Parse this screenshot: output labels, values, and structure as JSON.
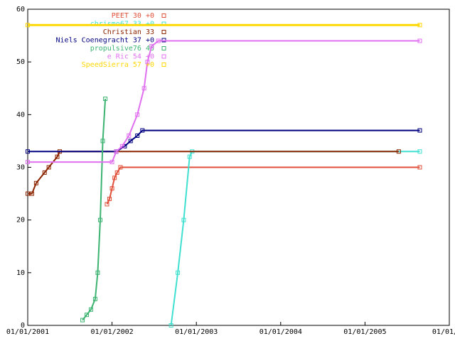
{
  "chart_data": {
    "type": "line",
    "xlim": [
      2001,
      2006
    ],
    "ylim": [
      0,
      60
    ],
    "xticks": [
      {
        "value": 2001,
        "label": "01/01/2001"
      },
      {
        "value": 2002,
        "label": "01/01/2002"
      },
      {
        "value": 2003,
        "label": "01/01/2003"
      },
      {
        "value": 2004,
        "label": "01/01/2004"
      },
      {
        "value": 2005,
        "label": "01/01/2005"
      },
      {
        "value": 2006,
        "label": "01/01/20"
      }
    ],
    "yticks": [
      0,
      10,
      20,
      30,
      40,
      50,
      60
    ],
    "series": [
      {
        "name": "PEET 30 +0",
        "color": "#e0503a",
        "x": [
          2001.94,
          2001.97,
          2002.0,
          2002.03,
          2002.06,
          2002.1,
          2005.65
        ],
        "values": [
          23,
          24,
          26,
          28,
          29,
          30,
          30
        ]
      },
      {
        "name": "chrismo67 33 +0",
        "color": "#40e0d0",
        "x": [
          2002.7,
          2002.78,
          2002.85,
          2002.92,
          2002.95,
          2005.65
        ],
        "values": [
          0,
          10,
          20,
          32,
          33,
          33
        ]
      },
      {
        "name": "Christian 33",
        "color": "#8b2500",
        "x": [
          2001.0,
          2001.05,
          2001.1,
          2001.2,
          2001.25,
          2001.35,
          2001.38,
          2005.4
        ],
        "values": [
          25,
          25,
          27,
          29,
          30,
          32,
          33,
          33
        ]
      },
      {
        "name": "Niels Coenegracht 37 +0",
        "color": "#000080",
        "x": [
          2001.0,
          2002.05,
          2002.15,
          2002.22,
          2002.3,
          2002.36,
          2005.65
        ],
        "values": [
          33,
          33,
          34,
          35,
          36,
          37,
          37
        ]
      },
      {
        "name": "propulsive76 43",
        "color": "#3cb371",
        "x": [
          2001.65,
          2001.7,
          2001.75,
          2001.8,
          2001.83,
          2001.86,
          2001.89,
          2001.92
        ],
        "values": [
          1,
          2,
          3,
          5,
          10,
          20,
          35,
          43
        ]
      },
      {
        "name": "e Ric 54 +0",
        "color": "#e070f0",
        "x": [
          2001.0,
          2002.0,
          2002.05,
          2002.12,
          2002.2,
          2002.3,
          2002.38,
          2002.42,
          2002.47,
          2002.55,
          2005.65
        ],
        "values": [
          31,
          31,
          33,
          34,
          36,
          40,
          45,
          50,
          53,
          54,
          54
        ]
      },
      {
        "name": "SpeedSierra 57 +0",
        "color": "#ffd700",
        "x": [
          2001.0,
          2005.65
        ],
        "values": [
          57,
          57
        ]
      }
    ]
  }
}
